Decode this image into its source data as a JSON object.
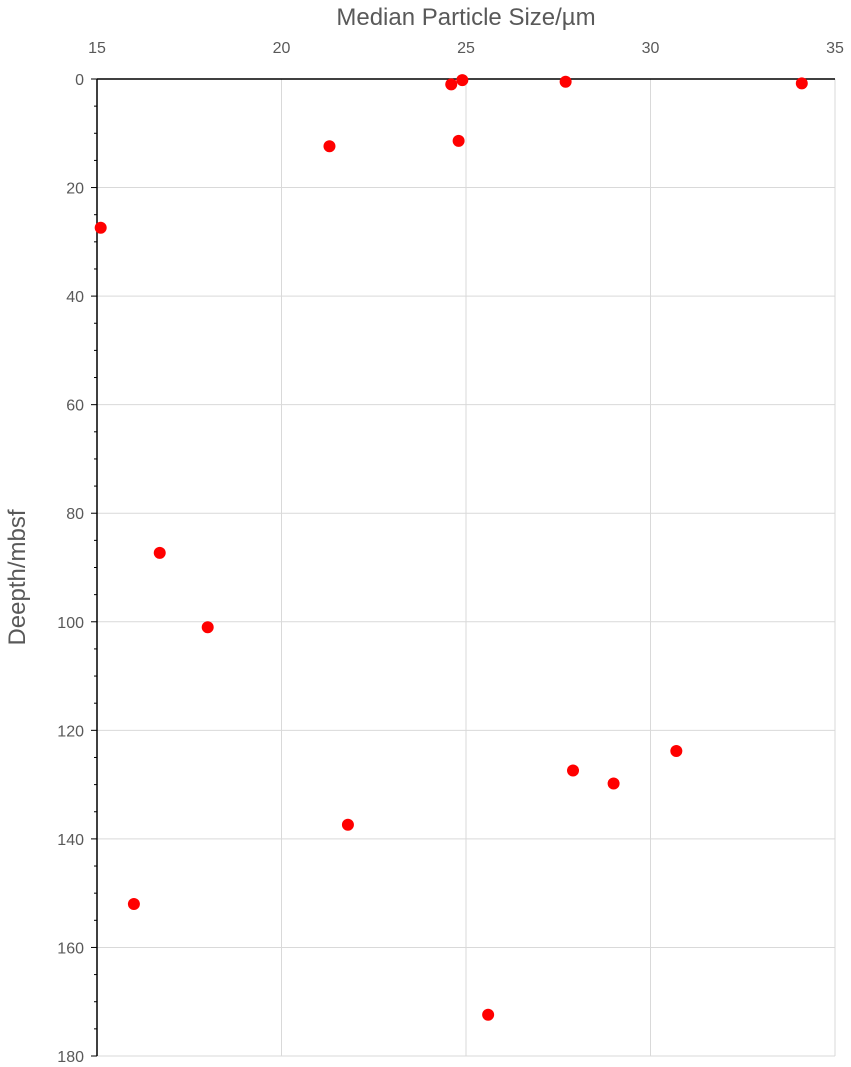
{
  "chart_data": {
    "type": "scatter",
    "title": "",
    "xlabel": "Median Particle Size/µm",
    "ylabel": "Deepth/mbsf",
    "x_axis_position": "top",
    "y_axis_inverted": true,
    "xlim": [
      15,
      35
    ],
    "ylim": [
      0,
      180
    ],
    "x_ticks": [
      15,
      20,
      25,
      30,
      35
    ],
    "y_ticks": [
      0,
      20,
      40,
      60,
      80,
      100,
      120,
      140,
      160,
      180
    ],
    "y_minor_step": 5,
    "grid": true,
    "legend": "none",
    "marker_color": "#ff0000",
    "series": [
      {
        "points": [
          {
            "x": 24.6,
            "y": 1.0
          },
          {
            "x": 24.9,
            "y": 0.2
          },
          {
            "x": 27.7,
            "y": 0.5
          },
          {
            "x": 34.1,
            "y": 0.8
          },
          {
            "x": 24.8,
            "y": 11.4
          },
          {
            "x": 21.3,
            "y": 12.4
          },
          {
            "x": 15.1,
            "y": 27.4
          },
          {
            "x": 16.7,
            "y": 87.3
          },
          {
            "x": 18.0,
            "y": 101.0
          },
          {
            "x": 30.7,
            "y": 123.8
          },
          {
            "x": 27.9,
            "y": 127.4
          },
          {
            "x": 29.0,
            "y": 129.8
          },
          {
            "x": 21.8,
            "y": 137.4
          },
          {
            "x": 16.0,
            "y": 152.0
          },
          {
            "x": 25.6,
            "y": 172.4
          }
        ]
      }
    ]
  }
}
